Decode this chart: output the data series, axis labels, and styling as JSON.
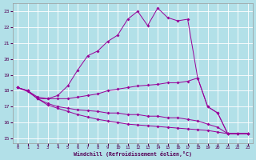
{
  "xlabel": "Windchill (Refroidissement éolien,°C)",
  "background_color": "#b2e0e8",
  "grid_color": "#ffffff",
  "line_color": "#990099",
  "ylim": [
    14.7,
    23.5
  ],
  "xlim": [
    -0.5,
    23.5
  ],
  "yticks": [
    15,
    16,
    17,
    18,
    19,
    20,
    21,
    22,
    23
  ],
  "xticks": [
    0,
    1,
    2,
    3,
    4,
    5,
    6,
    7,
    8,
    9,
    10,
    11,
    12,
    13,
    14,
    15,
    16,
    17,
    18,
    19,
    20,
    21,
    22,
    23
  ],
  "curve1_x": [
    0,
    1,
    2,
    3,
    4,
    5,
    6,
    7,
    8,
    9,
    10,
    11,
    12,
    13,
    14,
    15,
    16,
    17,
    18,
    19,
    20,
    21,
    22,
    23
  ],
  "curve1_y": [
    18.2,
    18.0,
    17.6,
    17.5,
    17.7,
    18.3,
    19.3,
    20.2,
    20.5,
    21.1,
    21.5,
    22.5,
    23.0,
    22.1,
    23.2,
    22.6,
    22.4,
    22.5,
    18.8,
    17.0,
    16.6,
    15.3,
    15.3,
    15.3
  ],
  "curve2_x": [
    0,
    1,
    2,
    3,
    4,
    5,
    6,
    7,
    8,
    9,
    10,
    11,
    12,
    13,
    14,
    15,
    16,
    17,
    18,
    19,
    20,
    21,
    22,
    23
  ],
  "curve2_y": [
    18.2,
    18.0,
    17.5,
    17.5,
    17.5,
    17.5,
    17.6,
    17.7,
    17.8,
    18.0,
    18.1,
    18.2,
    18.3,
    18.35,
    18.4,
    18.5,
    18.5,
    18.6,
    18.8,
    17.0,
    16.6,
    15.3,
    15.3,
    15.3
  ],
  "curve3_x": [
    0,
    1,
    2,
    3,
    4,
    5,
    6,
    7,
    8,
    9,
    10,
    11,
    12,
    13,
    14,
    15,
    16,
    17,
    18,
    19,
    20,
    21,
    22,
    23
  ],
  "curve3_y": [
    18.2,
    18.0,
    17.5,
    17.2,
    17.0,
    16.9,
    16.8,
    16.75,
    16.7,
    16.6,
    16.6,
    16.5,
    16.5,
    16.4,
    16.4,
    16.3,
    16.3,
    16.2,
    16.1,
    15.9,
    15.7,
    15.3,
    15.3,
    15.3
  ],
  "curve4_x": [
    0,
    1,
    2,
    3,
    4,
    5,
    6,
    7,
    8,
    9,
    10,
    11,
    12,
    13,
    14,
    15,
    16,
    17,
    18,
    19,
    20,
    21,
    22,
    23
  ],
  "curve4_y": [
    18.2,
    17.95,
    17.5,
    17.1,
    16.9,
    16.7,
    16.5,
    16.35,
    16.2,
    16.1,
    16.0,
    15.9,
    15.85,
    15.8,
    15.75,
    15.7,
    15.65,
    15.6,
    15.55,
    15.5,
    15.4,
    15.3,
    15.3,
    15.3
  ]
}
